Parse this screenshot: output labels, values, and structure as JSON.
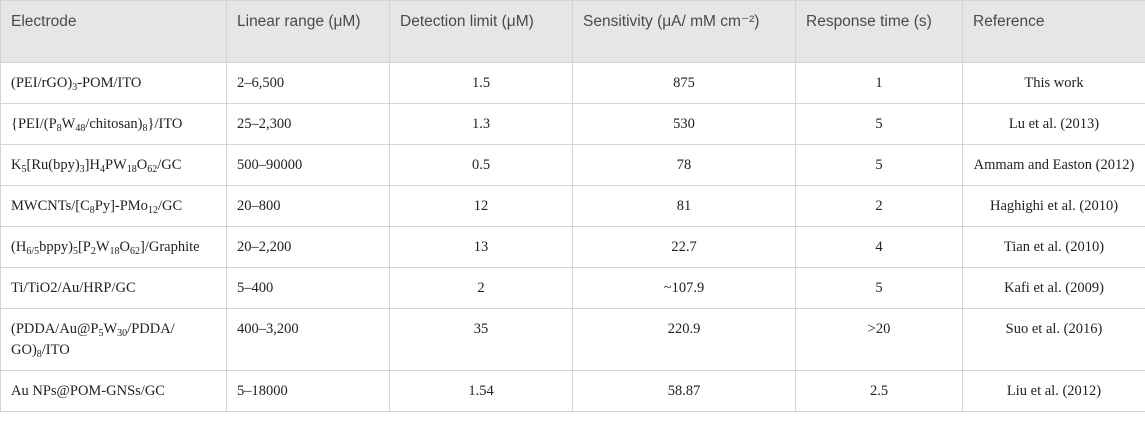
{
  "table": {
    "header": [
      "Electrode",
      "Linear range (μM)",
      "Detection limit (μM)",
      "Sensitivity (μA/ mM cm⁻²)",
      "Response time (s)",
      "Reference"
    ],
    "rows": [
      [
        [
          "(PEI/rGO)",
          "3",
          "-POM/ITO"
        ],
        "2–6,500",
        "1.5",
        "875",
        "1",
        "This work"
      ],
      [
        [
          "{PEI/(P",
          "8",
          "W",
          "48",
          "/chitosan)",
          "8",
          "}/ITO"
        ],
        "25–2,300",
        "1.3",
        "530",
        "5",
        "Lu et al. (2013)"
      ],
      [
        [
          "K",
          "5",
          "[Ru(bpy)",
          "3",
          "]H",
          "4",
          "PW",
          "18",
          "O",
          "62",
          "/GC"
        ],
        "500–90000",
        "0.5",
        "78",
        "5",
        "Ammam and Easton (2012)"
      ],
      [
        [
          "MWCNTs/[C",
          "8",
          "Py]-PMo",
          "12",
          "/GC"
        ],
        "20–800",
        "12",
        "81",
        "2",
        "Haghighi et al. (2010)"
      ],
      [
        [
          "(H",
          "6/5",
          "bppy)",
          "5",
          "[P",
          "2",
          "W",
          "18",
          "O",
          "62",
          "]/Graphite"
        ],
        "20–2,200",
        "13",
        "22.7",
        "4",
        "Tian et al. (2010)"
      ],
      [
        [
          "Ti/TiO2/Au/HRP/GC"
        ],
        "5–400",
        "2",
        "~107.9",
        "5",
        "Kafi et al. (2009)"
      ],
      [
        [
          "(PDDA/Au@P",
          "5",
          "W",
          "30",
          "/PDDA/ GO)",
          "8",
          "/ITO"
        ],
        "400–3,200",
        "35",
        "220.9",
        ">20",
        "Suo et al. (2016)"
      ],
      [
        [
          "Au NPs@POM-GNSs/GC"
        ],
        "5–18000",
        "1.54",
        "58.87",
        "2.5",
        "Liu et al. (2012)"
      ]
    ]
  }
}
